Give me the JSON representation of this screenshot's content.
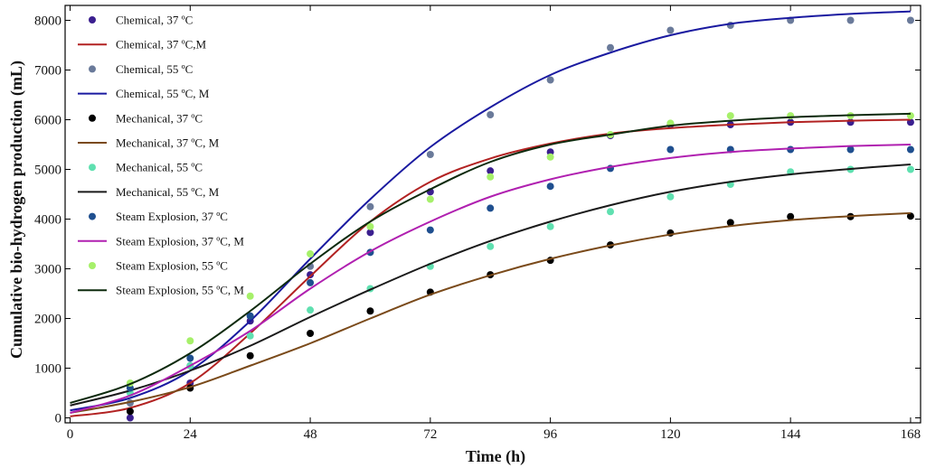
{
  "chart_data": {
    "type": "line",
    "title": "",
    "xlabel": "Time (h)",
    "ylabel": "Cumulative bio-hydrogen production (mL)",
    "xlim": [
      -1,
      170
    ],
    "ylim": [
      -100,
      8300
    ],
    "x_ticks": [
      0,
      24,
      48,
      72,
      96,
      120,
      144,
      168
    ],
    "y_ticks": [
      0,
      1000,
      2000,
      3000,
      4000,
      5000,
      6000,
      7000,
      8000
    ],
    "grid": false,
    "legend_position": "top-left",
    "x": [
      0,
      12,
      24,
      36,
      48,
      60,
      72,
      84,
      96,
      108,
      120,
      132,
      144,
      156,
      168
    ],
    "series": [
      {
        "name": "Chemical, 37 ºC",
        "kind": "points",
        "color": "#3b1f8f",
        "values": [
          null,
          0,
          700,
          1950,
          2880,
          3730,
          4550,
          4970,
          5350,
          5680,
          5900,
          5900,
          5950,
          5950,
          5950
        ]
      },
      {
        "name": "Chemical, 37 ºC,M",
        "kind": "line",
        "color": "#b22222",
        "values": [
          30,
          200,
          700,
          1700,
          2850,
          3950,
          4750,
          5220,
          5520,
          5720,
          5830,
          5900,
          5950,
          5980,
          6000
        ]
      },
      {
        "name": "Chemical, 55 ºC",
        "kind": "points",
        "color": "#6a7a9a",
        "values": [
          null,
          300,
          1050,
          2050,
          3050,
          4250,
          5300,
          6100,
          6800,
          7450,
          7800,
          7900,
          8000,
          8000,
          8000
        ]
      },
      {
        "name": "Chemical, 55 ºC, M",
        "kind": "line",
        "color": "#1a1aa0",
        "values": [
          150,
          400,
          950,
          1950,
          3200,
          4400,
          5450,
          6250,
          6900,
          7350,
          7700,
          7930,
          8050,
          8130,
          8180
        ]
      },
      {
        "name": "Mechanical, 37 ºC",
        "kind": "points",
        "color": "#000000",
        "values": [
          null,
          130,
          600,
          1250,
          1700,
          2150,
          2530,
          2880,
          3170,
          3480,
          3720,
          3930,
          4050,
          4050,
          4060
        ]
      },
      {
        "name": "Mechanical, 37 ºC, M",
        "kind": "line",
        "color": "#7a4a1a",
        "values": [
          100,
          320,
          620,
          1050,
          1500,
          2000,
          2480,
          2870,
          3200,
          3470,
          3690,
          3860,
          3980,
          4060,
          4120
        ]
      },
      {
        "name": "Mechanical, 55 ºC",
        "kind": "points",
        "color": "#5fe0b0",
        "values": [
          null,
          500,
          1050,
          1650,
          2170,
          2600,
          3050,
          3450,
          3850,
          4150,
          4450,
          4700,
          4950,
          5000,
          5000
        ]
      },
      {
        "name": "Mechanical, 55 ºC, M",
        "kind": "line",
        "color": "#1a1a1a",
        "values": [
          250,
          550,
          950,
          1450,
          2030,
          2580,
          3100,
          3560,
          3950,
          4280,
          4550,
          4750,
          4900,
          5010,
          5100
        ]
      },
      {
        "name": "Steam Explosion, 37 ºC",
        "kind": "points",
        "color": "#1f4f8f",
        "values": [
          null,
          600,
          1200,
          2050,
          2720,
          3330,
          3780,
          4220,
          4660,
          5020,
          5400,
          5400,
          5400,
          5400,
          5400
        ]
      },
      {
        "name": "Steam Explosion, 37 ºC, M",
        "kind": "line",
        "color": "#b020b0",
        "values": [
          100,
          450,
          1050,
          1750,
          2600,
          3350,
          3950,
          4450,
          4800,
          5050,
          5230,
          5350,
          5420,
          5470,
          5500
        ]
      },
      {
        "name": "Steam Explosion, 55 ºC",
        "kind": "points",
        "color": "#a6f06a",
        "values": [
          null,
          700,
          1550,
          2450,
          3300,
          3850,
          4400,
          4850,
          5250,
          5700,
          5930,
          6080,
          6080,
          6080,
          6080
        ]
      },
      {
        "name": "Steam Explosion, 55 ºC, M",
        "kind": "line",
        "color": "#0d2a0d",
        "values": [
          300,
          680,
          1300,
          2150,
          3100,
          3950,
          4600,
          5150,
          5500,
          5700,
          5880,
          5980,
          6050,
          6090,
          6120
        ]
      }
    ]
  }
}
